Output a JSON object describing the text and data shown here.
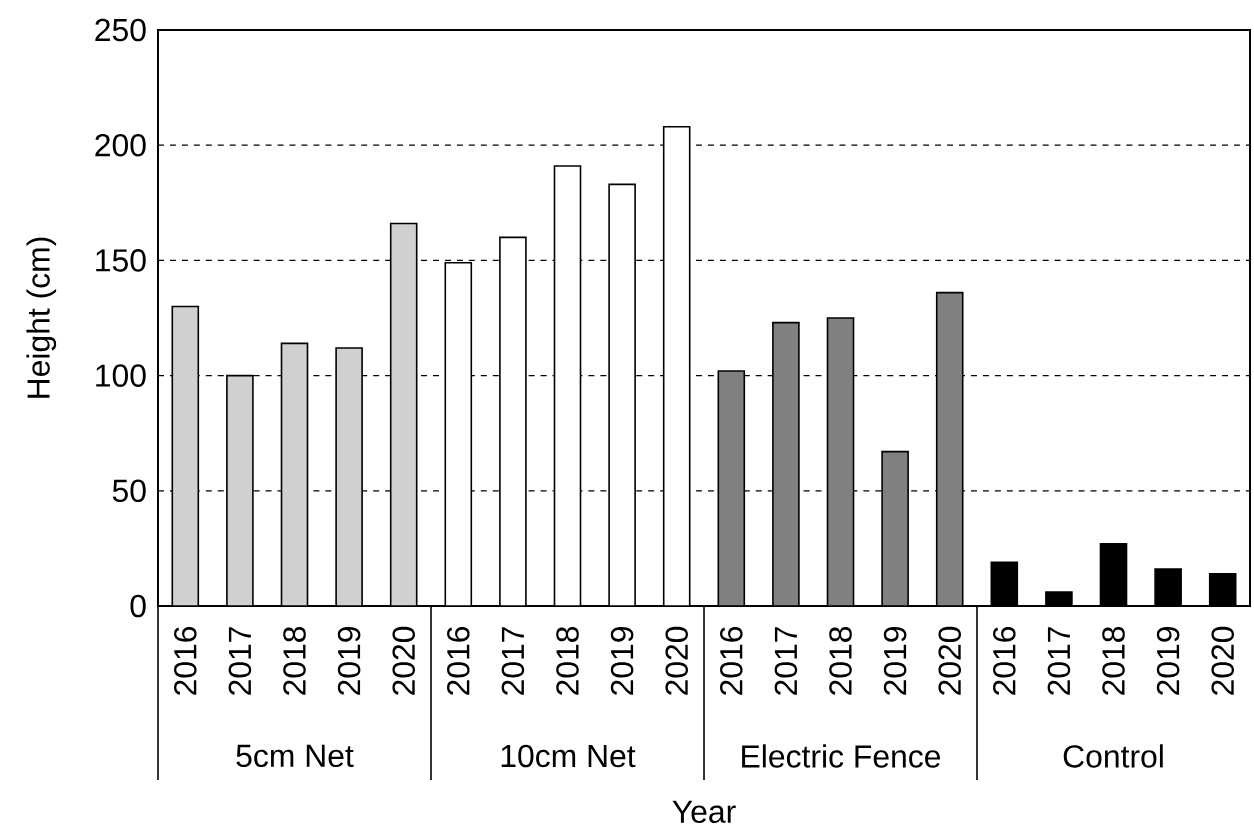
{
  "chart_data": {
    "type": "bar",
    "xlabel": "Year",
    "ylabel": "Height (cm)",
    "categories": [
      "2016",
      "2017",
      "2018",
      "2019",
      "2020",
      "2016",
      "2017",
      "2018",
      "2019",
      "2020",
      "2016",
      "2017",
      "2018",
      "2019",
      "2020",
      "2016",
      "2017",
      "2018",
      "2019",
      "2020"
    ],
    "series": [
      {
        "color": "#d0d0d0",
        "values": [
          130,
          100,
          114,
          112,
          166,
          null,
          null,
          null,
          null,
          null,
          null,
          null,
          null,
          null,
          null,
          null,
          null,
          null,
          null,
          null
        ]
      },
      {
        "color": "#ffffff",
        "values": [
          null,
          null,
          null,
          null,
          null,
          149,
          160,
          191,
          183,
          208,
          null,
          null,
          null,
          null,
          null,
          null,
          null,
          null,
          null,
          null
        ]
      },
      {
        "color": "#808080",
        "values": [
          null,
          null,
          null,
          null,
          null,
          null,
          null,
          null,
          null,
          null,
          102,
          123,
          125,
          67,
          136,
          null,
          null,
          null,
          null,
          null
        ]
      },
      {
        "color": "#000000",
        "values": [
          null,
          null,
          null,
          null,
          null,
          null,
          null,
          null,
          null,
          null,
          null,
          null,
          null,
          null,
          null,
          19,
          6,
          27,
          16,
          14
        ]
      }
    ],
    "annotations": [
      "5cm Net",
      "10cm Net",
      "Electric Fence",
      "Control"
    ],
    "ylim": [
      0,
      250
    ],
    "yticks": [
      0,
      50,
      100,
      150,
      200,
      250
    ],
    "grid": "y"
  }
}
